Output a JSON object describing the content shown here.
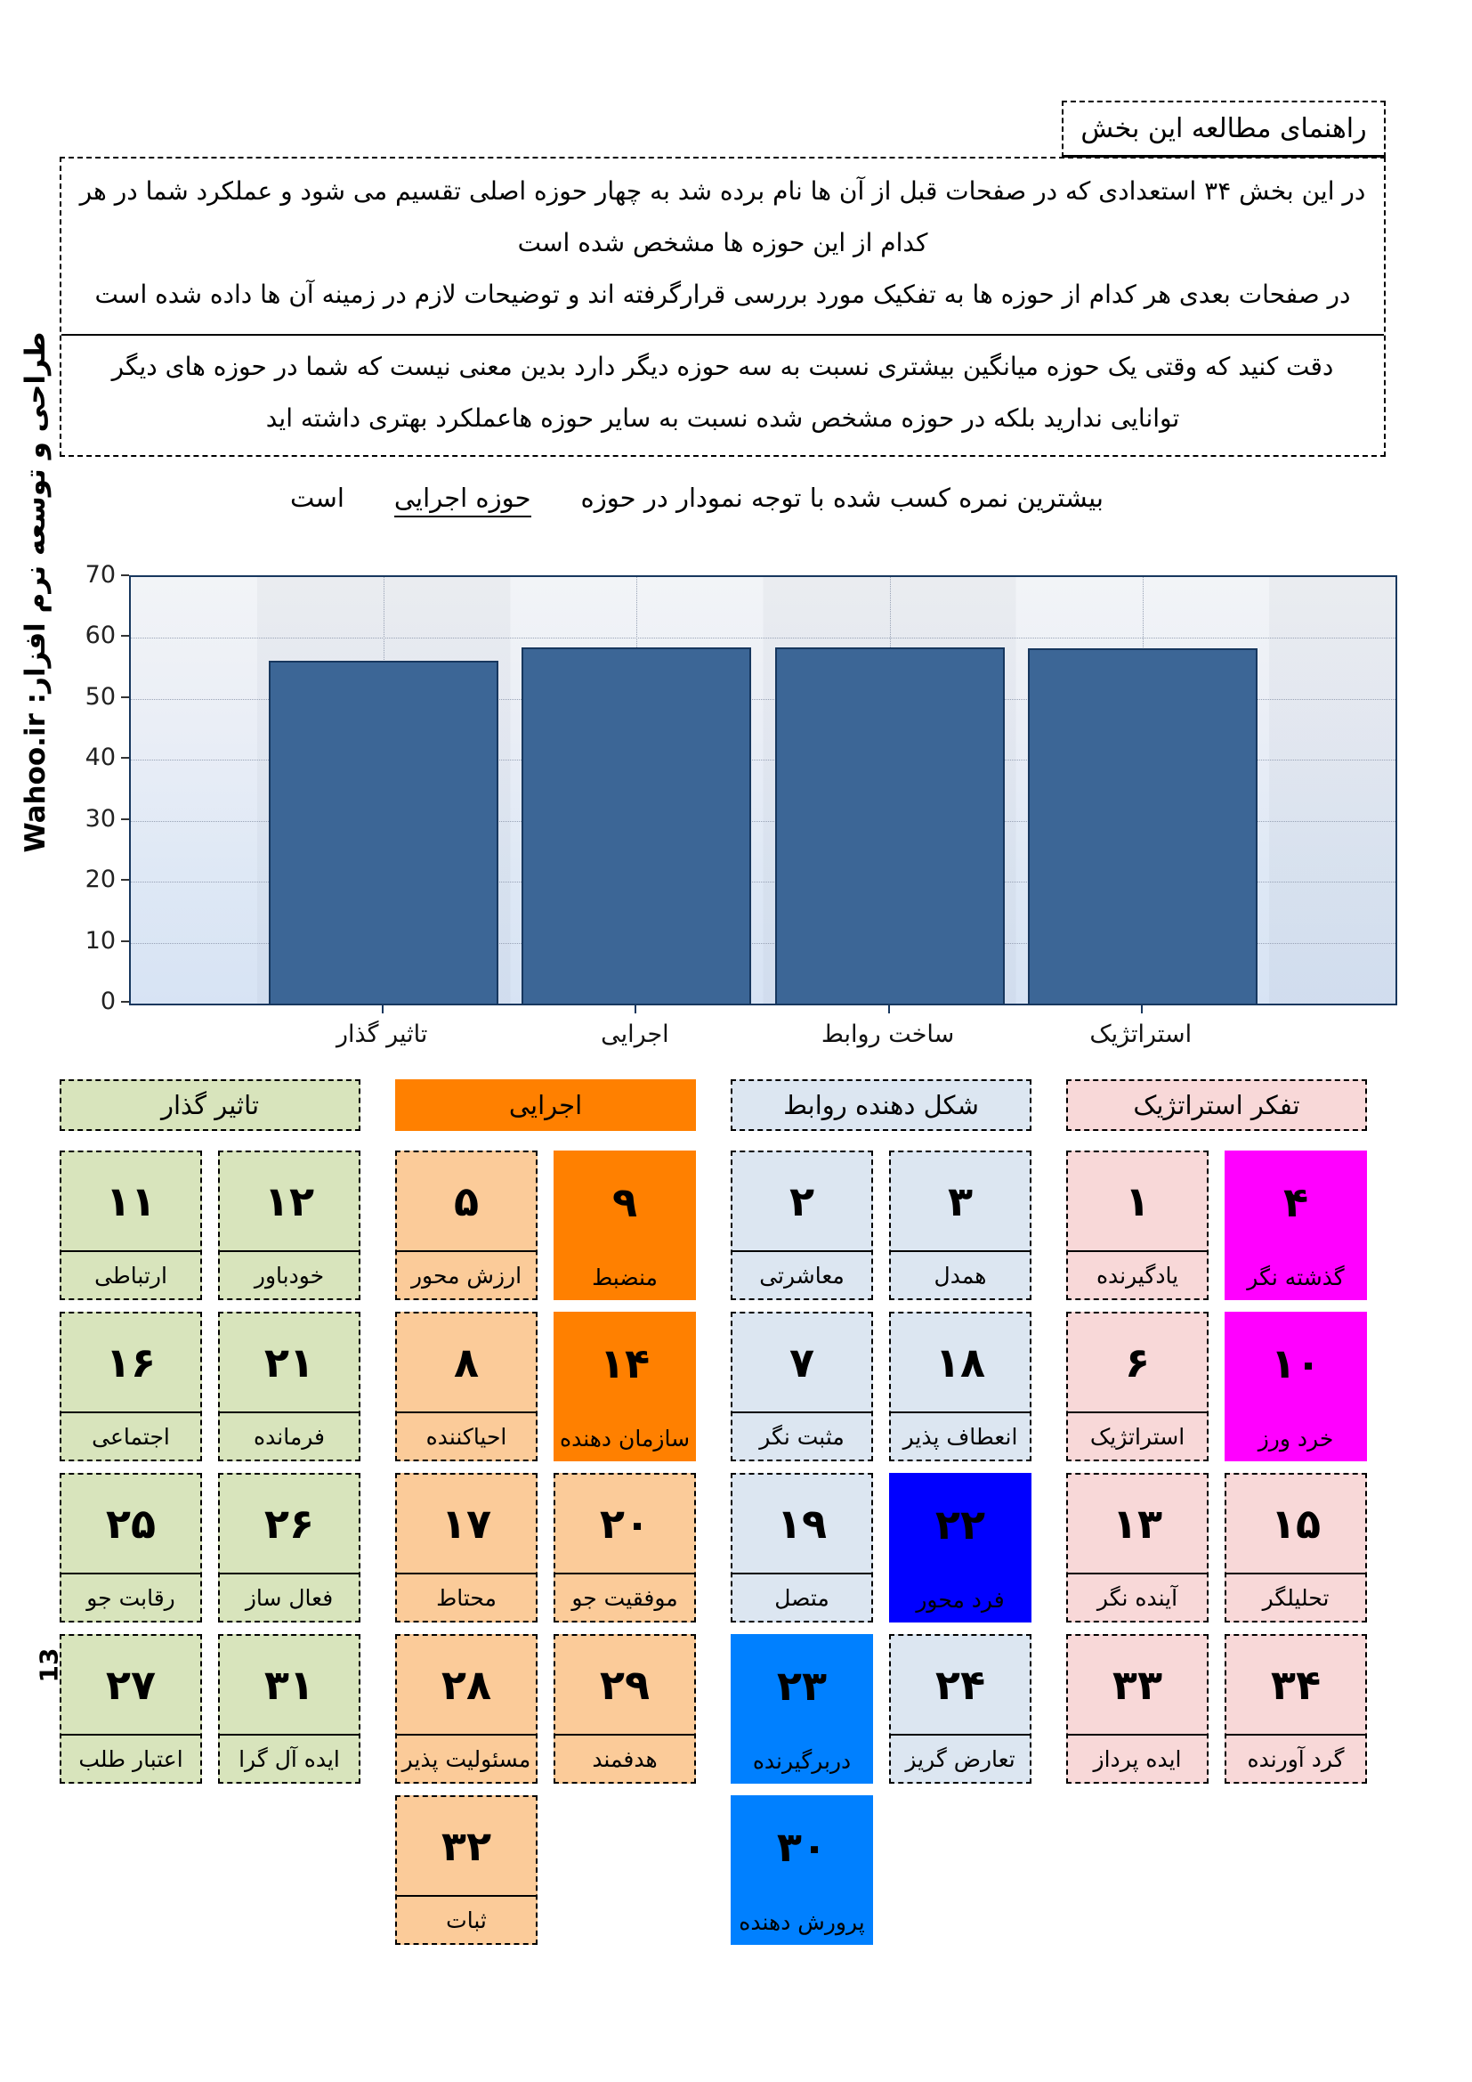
{
  "page": {
    "number": "13",
    "credit_vertical": "طراحی و توسعه نرم افزار:  Wahoo.ir"
  },
  "guide": {
    "box_title": "راهنمای مطالعه این بخش",
    "para1": "در این بخش ۳۴ استعدادی که در صفحات قبل از آن ها نام برده شد به چهار حوزه اصلی تقسیم می شود و عملکرد شما در هر کدام از این حوزه ها مشخص شده است",
    "para1b": "در صفحات بعدی هر کدام از حوزه ها به تفکیک مورد بررسی قرارگرفته اند و توضیحات لازم در زمینه آن ها داده شده است",
    "para2": "دقت کنید که وقتی یک حوزه میانگین بیشتری نسبت به سه حوزه دیگر دارد بدین معنی نیست که شما در حوزه های دیگر توانایی ندارید بلکه در حوزه مشخص شده نسبت به سایر حوزه هاعملکرد بهتری داشته اید"
  },
  "summary": {
    "prefix": "بیشترین نمره کسب شده با توجه نمودار در حوزه",
    "highlight": "حوزه اجرایی",
    "suffix": "است"
  },
  "chart_data": {
    "type": "bar",
    "title": "",
    "categories": [
      "تاثیر گذار",
      "اجرایی",
      "ساخت روابط",
      "استراتژیک"
    ],
    "values": [
      56.3,
      58.5,
      58.4,
      58.3
    ],
    "xlabel": "",
    "ylabel": "",
    "ylim": [
      0,
      70
    ],
    "yticks": [
      0,
      10,
      20,
      30,
      40,
      50,
      60,
      70
    ],
    "grid": true,
    "legend": false,
    "bar_color": "#3C6696",
    "bar_border_color": "#17375E"
  },
  "talent_groups": [
    {
      "name": "تاثیر گذار",
      "header_bg": "#D8E4BC",
      "header_dashed": true,
      "card_bg": "#D8E4BC",
      "cards": [
        {
          "num": "۱۱",
          "label": "ارتباطی"
        },
        {
          "num": "۱۲",
          "label": "خودباور"
        },
        {
          "num": "۱۶",
          "label": "اجتماعی"
        },
        {
          "num": "۲۱",
          "label": "فرمانده"
        },
        {
          "num": "۲۵",
          "label": "رقابت جو"
        },
        {
          "num": "۲۶",
          "label": "فعال ساز"
        },
        {
          "num": "۲۷",
          "label": "اعتبار طلب"
        },
        {
          "num": "۳۱",
          "label": "ایده آل گرا"
        }
      ]
    },
    {
      "name": "اجرایی",
      "header_bg": "#FF8000",
      "header_dashed": false,
      "card_bg": "#FBCB99",
      "cards": [
        {
          "num": "۵",
          "label": "ارزش محور"
        },
        {
          "num": "۹",
          "label": "منضبط",
          "hl": "#FF8000"
        },
        {
          "num": "۸",
          "label": "احیاکننده"
        },
        {
          "num": "۱۴",
          "label": "سازمان دهنده",
          "hl": "#FF8000"
        },
        {
          "num": "۱۷",
          "label": "محتاط"
        },
        {
          "num": "۲۰",
          "label": "موفقیت جو"
        },
        {
          "num": "۲۸",
          "label": "مسئولیت پذیر"
        },
        {
          "num": "۲۹",
          "label": "هدفمند"
        },
        {
          "num": "۳۲",
          "label": "ثبات"
        }
      ]
    },
    {
      "name": "شکل دهنده روابط",
      "header_bg": "#DCE6F1",
      "header_dashed": true,
      "card_bg": "#DCE6F1",
      "cards": [
        {
          "num": "۲",
          "label": "معاشرتی"
        },
        {
          "num": "۳",
          "label": "همدل"
        },
        {
          "num": "۷",
          "label": "مثبت نگر"
        },
        {
          "num": "۱۸",
          "label": "انعطاف پذیر"
        },
        {
          "num": "۱۹",
          "label": "متصل"
        },
        {
          "num": "۲۲",
          "label": "فرد محور",
          "hl": "#0000FF"
        },
        {
          "num": "۲۳",
          "label": "دربرگیرنده",
          "hl": "#0080FF"
        },
        {
          "num": "۲۴",
          "label": "تعارض گریز"
        },
        {
          "num": "۳۰",
          "label": "پرورش دهنده",
          "hl": "#0080FF"
        }
      ]
    },
    {
      "name": "تفکر استراتژیک",
      "header_bg": "#F8D8D8",
      "header_dashed": true,
      "card_bg": "#F8D8D8",
      "cards": [
        {
          "num": "۱",
          "label": "یادگیرنده"
        },
        {
          "num": "۴",
          "label": "گذشته نگر",
          "hl": "#FF00FF"
        },
        {
          "num": "۶",
          "label": "استراتژیک"
        },
        {
          "num": "۱۰",
          "label": "خرد ورز",
          "hl": "#FF00FF"
        },
        {
          "num": "۱۳",
          "label": "آینده نگر"
        },
        {
          "num": "۱۵",
          "label": "تحلیلگر"
        },
        {
          "num": "۳۳",
          "label": "ایده پرداز"
        },
        {
          "num": "۳۴",
          "label": "گرد آورنده"
        }
      ]
    }
  ]
}
